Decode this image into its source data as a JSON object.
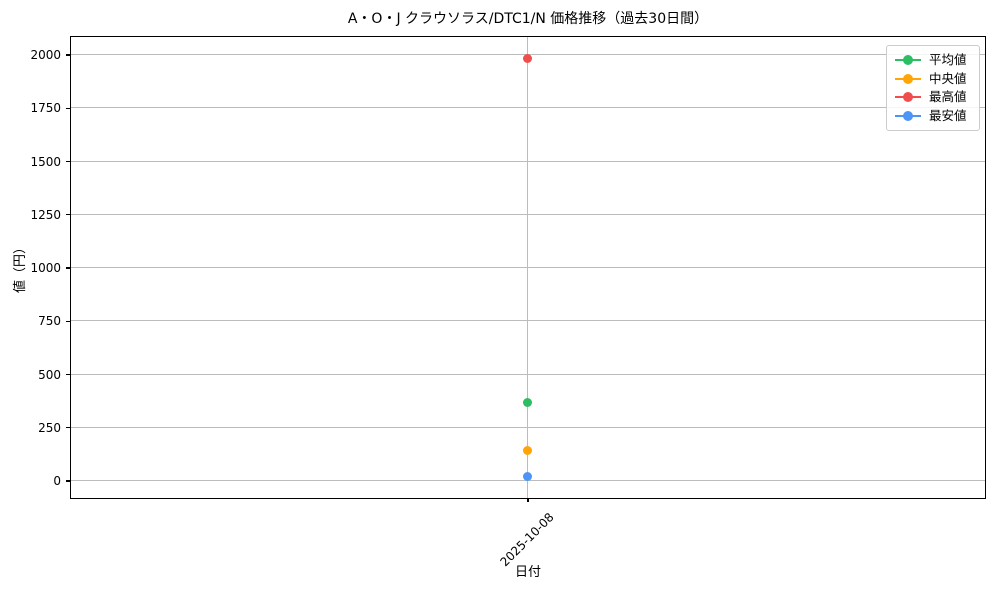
{
  "chart_data": {
    "type": "scatter",
    "title": "A・O・J クラウソラス/DTC1/N 価格推移（過去30日間）",
    "xlabel": "日付",
    "ylabel": "値（円）",
    "categories": [
      "2025-10-08"
    ],
    "series": [
      {
        "name": "平均値",
        "color": "#2dbe64",
        "values": [
          365
        ]
      },
      {
        "name": "中央値",
        "color": "#ffa507",
        "values": [
          140
        ]
      },
      {
        "name": "最高値",
        "color": "#f24d4d",
        "values": [
          1980
        ]
      },
      {
        "name": "最安値",
        "color": "#4d94f7",
        "values": [
          20
        ]
      }
    ],
    "yticks": [
      0,
      250,
      500,
      750,
      1000,
      1250,
      1500,
      1750,
      2000
    ],
    "ylim": [
      -80,
      2090
    ],
    "grid": true,
    "grid_color": "#bcbcbc",
    "legend_position": "upper right",
    "x_tick_rotation": 45,
    "marker": "circle"
  }
}
